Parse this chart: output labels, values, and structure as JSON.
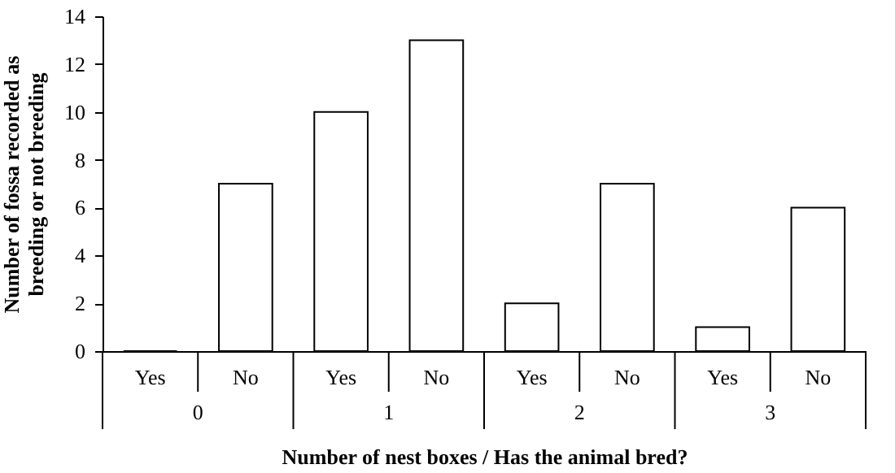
{
  "chart_data": {
    "type": "bar",
    "xlabel": "Number of nest boxes / Has the animal bred?",
    "ylabel": "Number of fossa recorded as breeding or not breeding",
    "categories": [
      "Yes",
      "No",
      "Yes",
      "No",
      "Yes",
      "No",
      "Yes",
      "No"
    ],
    "values": [
      0,
      7,
      10,
      13,
      2,
      7,
      1,
      6
    ],
    "color": "#ffffff",
    "annotations": [
      "0",
      "1",
      "2",
      "3"
    ],
    "ylim": [
      0,
      14
    ],
    "yticks": [
      0,
      2,
      4,
      6,
      8,
      10,
      12,
      14
    ],
    "grid": false
  }
}
